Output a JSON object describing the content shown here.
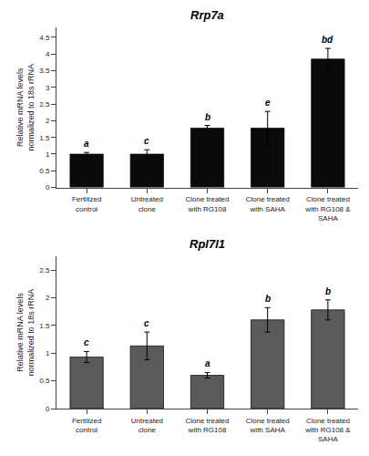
{
  "chart_data": [
    {
      "type": "bar",
      "title": "Rrp7a",
      "categories": [
        "Fertilized\ncontrol",
        "Untreated\nclone",
        "Clone treated\nwith RG108",
        "Clone treated\nwith SAHA",
        "Clone treated\nwith RG108 &\nSAHA"
      ],
      "values": [
        1.0,
        1.0,
        1.78,
        1.78,
        3.85
      ],
      "errors": [
        0.05,
        0.13,
        0.08,
        0.5,
        0.32
      ],
      "annotations": [
        "a",
        "c",
        "b",
        "e",
        "bd"
      ],
      "color": "#0a0a0a",
      "ylabel": "Relative mRNA levels\nnormalized to 18s rRNA",
      "ylim": [
        0,
        4.8
      ],
      "yticks": [
        0,
        0.5,
        1,
        1.5,
        2,
        2.5,
        3,
        3.5,
        4,
        4.5
      ],
      "grid": false
    },
    {
      "type": "bar",
      "title": "Rpl7l1",
      "categories": [
        "Fertilized\ncontrol",
        "Untreated\nclone",
        "Clone treated\nwith RG108",
        "Clone treated\nwith SAHA",
        "Clone treated\nwith RG108 &\nSAHA"
      ],
      "values": [
        0.93,
        1.13,
        0.6,
        1.6,
        1.78
      ],
      "errors": [
        0.1,
        0.25,
        0.05,
        0.22,
        0.18
      ],
      "annotations": [
        "c",
        "c",
        "a",
        "b",
        "b"
      ],
      "color": "#5a5a5a",
      "ylabel": "Relative mRNA levels\nnormalized to 18s rRNA",
      "ylim": [
        0,
        2.75
      ],
      "yticks": [
        0,
        0.5,
        1,
        1.5,
        2,
        2.5
      ],
      "grid": false
    }
  ]
}
